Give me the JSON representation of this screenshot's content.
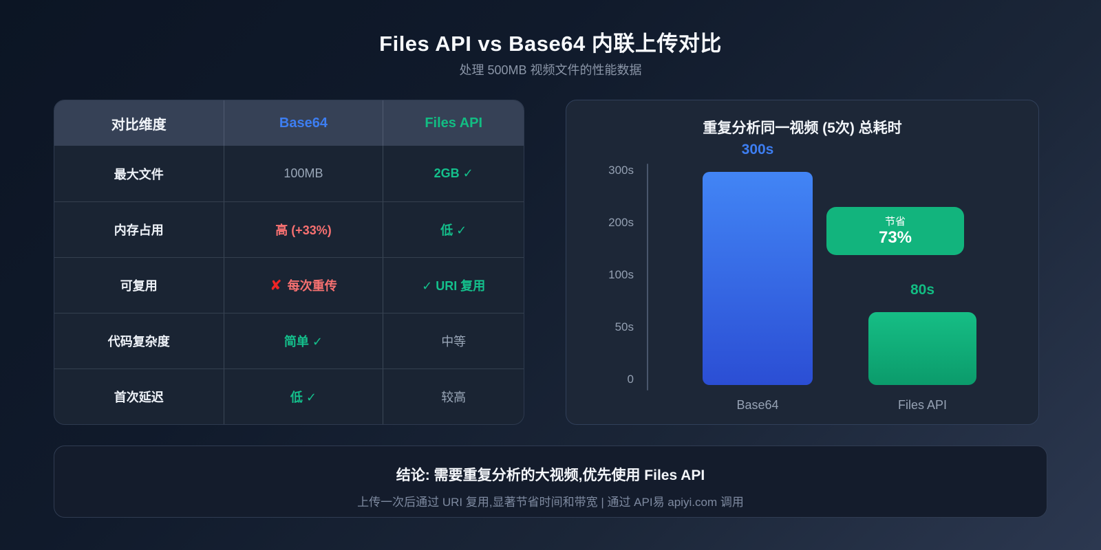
{
  "page": {
    "title": "Files API vs Base64 内联上传对比",
    "subtitle": "处理 500MB 视频文件的性能数据"
  },
  "colors": {
    "background_top": "#0c1524",
    "background_bottom": "#2c3850",
    "accent_blue": "#3d7ef2",
    "accent_green": "#12bd83",
    "accent_red": "#f87171",
    "badge_green": "#12b47d"
  },
  "table": {
    "columns": [
      {
        "label": "对比维度"
      },
      {
        "label": "Base64"
      },
      {
        "label": "Files API"
      }
    ],
    "rows": [
      {
        "dimension": "最大文件",
        "base64": {
          "text": "100MB",
          "variant": "plain"
        },
        "files": {
          "text": "2GB ✓",
          "variant": "green"
        }
      },
      {
        "dimension": "内存占用",
        "base64": {
          "text": "高 (+33%)",
          "variant": "red"
        },
        "files": {
          "text": "低 ✓",
          "variant": "green"
        }
      },
      {
        "dimension": "可复用",
        "base64": {
          "icon": "✘",
          "text": "每次重传",
          "variant": "red"
        },
        "files": {
          "text": "✓ URI 复用",
          "variant": "green"
        }
      },
      {
        "dimension": "代码复杂度",
        "base64": {
          "text": "简单 ✓",
          "variant": "green"
        },
        "files": {
          "text": "中等",
          "variant": "plain"
        }
      },
      {
        "dimension": "首次延迟",
        "base64": {
          "text": "低 ✓",
          "variant": "green"
        },
        "files": {
          "text": "较高",
          "variant": "plain"
        }
      }
    ]
  },
  "chart_data": {
    "type": "bar",
    "title": "重复分析同一视频 (5次) 总耗时",
    "categories": [
      "Base64",
      "Files API"
    ],
    "values": [
      300,
      80
    ],
    "value_labels": [
      "300s",
      "80s"
    ],
    "unit": "s",
    "yticks": [
      "300s",
      "200s",
      "100s",
      "50s",
      "0"
    ],
    "ylim": [
      0,
      300
    ],
    "grid": false,
    "legend": false,
    "bar_colors": [
      "#3d7ef2",
      "#12bd83"
    ],
    "badge": {
      "line1": "节省",
      "line2": "73%"
    }
  },
  "conclusion": {
    "title": "结论: 需要重复分析的大视频,优先使用 Files API",
    "subtitle": "上传一次后通过 URI 复用,显著节省时间和带宽 | 通过 API易 apiyi.com 调用"
  }
}
